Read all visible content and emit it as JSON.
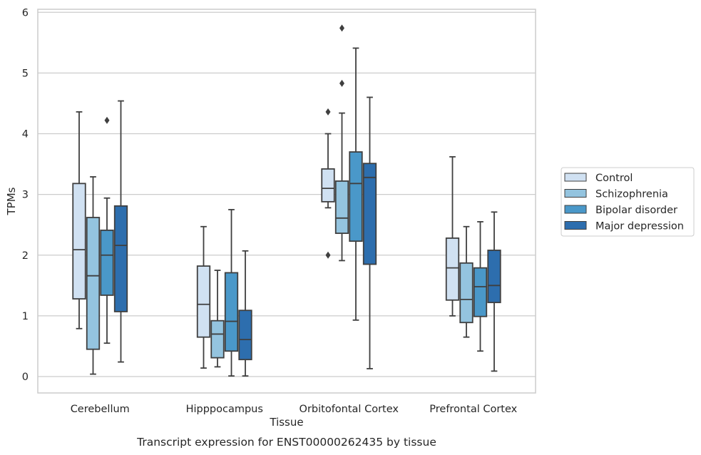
{
  "chart_data": {
    "type": "box",
    "title": "",
    "caption": "Transcript expression for ENST00000262435 by tissue",
    "xlabel": "Tissue",
    "ylabel": "TPMs",
    "ylim": [
      -0.27,
      6.05
    ],
    "yticks": [
      0,
      1,
      2,
      3,
      4,
      5,
      6
    ],
    "grid": "horizontal",
    "legend_position": "center-right",
    "categories": [
      "Cerebellum",
      "Hipppocampus",
      "Orbitofontal Cortex",
      "Prefrontal Cortex"
    ],
    "series": [
      {
        "name": "Control",
        "color": "#d0e1f2",
        "boxes": [
          {
            "min": 0.79,
            "q1": 1.28,
            "median": 2.09,
            "q3": 3.18,
            "max": 4.36,
            "outliers": []
          },
          {
            "min": 0.14,
            "q1": 0.65,
            "median": 1.19,
            "q3": 1.82,
            "max": 2.47,
            "outliers": []
          },
          {
            "min": 2.78,
            "q1": 2.88,
            "median": 3.1,
            "q3": 3.42,
            "max": 4.0,
            "outliers": [
              4.36,
              2.0
            ]
          },
          {
            "min": 1.0,
            "q1": 1.26,
            "median": 1.79,
            "q3": 2.28,
            "max": 3.62,
            "outliers": []
          }
        ]
      },
      {
        "name": "Schizophrenia",
        "color": "#94c4df",
        "boxes": [
          {
            "min": 0.04,
            "q1": 0.45,
            "median": 1.66,
            "q3": 2.62,
            "max": 3.29,
            "outliers": []
          },
          {
            "min": 0.16,
            "q1": 0.31,
            "median": 0.7,
            "q3": 0.92,
            "max": 1.75,
            "outliers": []
          },
          {
            "min": 1.91,
            "q1": 2.36,
            "median": 2.61,
            "q3": 3.22,
            "max": 4.34,
            "outliers": [
              4.83,
              5.74
            ]
          },
          {
            "min": 0.65,
            "q1": 0.89,
            "median": 1.27,
            "q3": 1.87,
            "max": 2.47,
            "outliers": []
          }
        ]
      },
      {
        "name": "Bipolar disorder",
        "color": "#4a98c9",
        "boxes": [
          {
            "min": 0.55,
            "q1": 1.34,
            "median": 2.0,
            "q3": 2.41,
            "max": 2.94,
            "outliers": [
              4.22
            ]
          },
          {
            "min": 0.01,
            "q1": 0.42,
            "median": 0.91,
            "q3": 1.71,
            "max": 2.75,
            "outliers": []
          },
          {
            "min": 0.93,
            "q1": 2.23,
            "median": 3.18,
            "q3": 3.7,
            "max": 5.41,
            "outliers": []
          },
          {
            "min": 0.42,
            "q1": 0.99,
            "median": 1.48,
            "q3": 1.79,
            "max": 2.55,
            "outliers": []
          }
        ]
      },
      {
        "name": "Major depression",
        "color": "#2d6eae",
        "boxes": [
          {
            "min": 0.24,
            "q1": 1.07,
            "median": 2.16,
            "q3": 2.81,
            "max": 4.54,
            "outliers": []
          },
          {
            "min": 0.01,
            "q1": 0.28,
            "median": 0.61,
            "q3": 1.09,
            "max": 2.07,
            "outliers": []
          },
          {
            "min": 0.13,
            "q1": 1.85,
            "median": 3.28,
            "q3": 3.51,
            "max": 4.6,
            "outliers": []
          },
          {
            "min": 0.09,
            "q1": 1.22,
            "median": 1.5,
            "q3": 2.08,
            "max": 2.71,
            "outliers": []
          }
        ]
      }
    ]
  }
}
